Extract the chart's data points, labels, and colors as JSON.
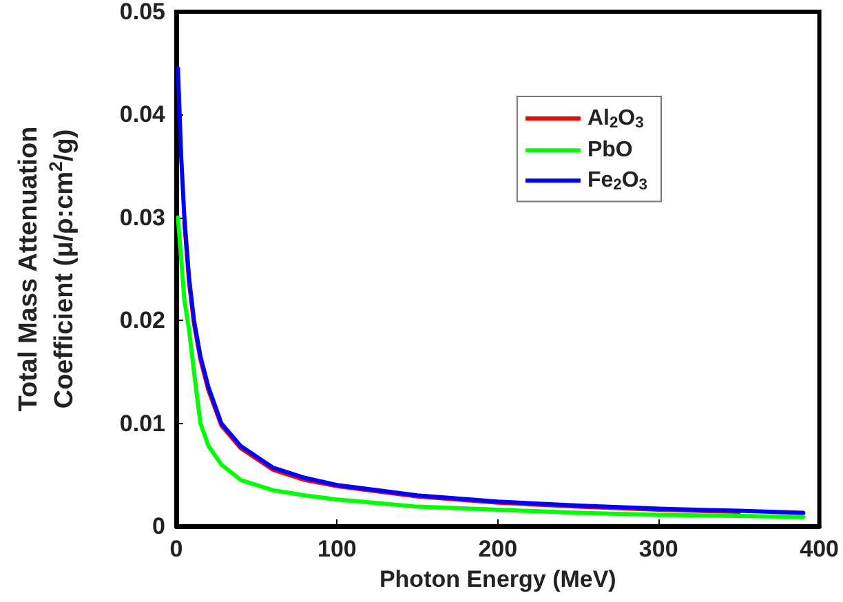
{
  "chart_data": {
    "type": "line",
    "xlabel": "Photon Energy (MeV)",
    "ylabel": "Total Mass Attenuation\nCoefficient (μ/ρ:cm$^{2}$/g)",
    "xlim": [
      0,
      400
    ],
    "xticks": [
      0,
      100,
      200,
      300,
      400
    ],
    "ylim": [
      0,
      0.05
    ],
    "yticks": [
      0,
      0.01,
      0.02,
      0.03,
      0.04,
      0.05
    ],
    "grid": false,
    "legend": "top right",
    "marker": "none",
    "line_style": "solid",
    "series": [
      {
        "name": "Al$_{2}$O$_{3}$",
        "color": "#ff0000",
        "x": [
          5,
          8,
          11,
          15,
          20,
          28,
          40,
          60,
          80,
          100,
          150,
          200,
          250,
          300,
          350
        ],
        "values": [
          0.0295,
          0.0236,
          0.0197,
          0.0162,
          0.0132,
          0.0098,
          0.0076,
          0.0055,
          0.0045,
          0.0039,
          0.0029,
          0.0023,
          0.0019,
          0.0016,
          0.0014
        ]
      },
      {
        "name": "PbO",
        "color": "#00ff00",
        "x": [
          1,
          3,
          5,
          8,
          11,
          15,
          20,
          28,
          40,
          60,
          80,
          100,
          150,
          200,
          250,
          300,
          350,
          390
        ],
        "values": [
          0.03,
          0.026,
          0.022,
          0.019,
          0.015,
          0.01,
          0.0078,
          0.006,
          0.0045,
          0.0035,
          0.003,
          0.0026,
          0.0019,
          0.0016,
          0.0013,
          0.0011,
          0.001,
          0.0009
        ]
      },
      {
        "name": "Fe$_{2}$O$_{3}$",
        "color": "#0000ff",
        "x": [
          1,
          3,
          5,
          8,
          11,
          15,
          20,
          28,
          40,
          60,
          80,
          100,
          150,
          200,
          250,
          300,
          350,
          390
        ],
        "values": [
          0.0445,
          0.036,
          0.03,
          0.024,
          0.02,
          0.0165,
          0.0135,
          0.01,
          0.0078,
          0.0057,
          0.0047,
          0.004,
          0.003,
          0.0024,
          0.002,
          0.0017,
          0.0015,
          0.0013
        ]
      }
    ]
  }
}
